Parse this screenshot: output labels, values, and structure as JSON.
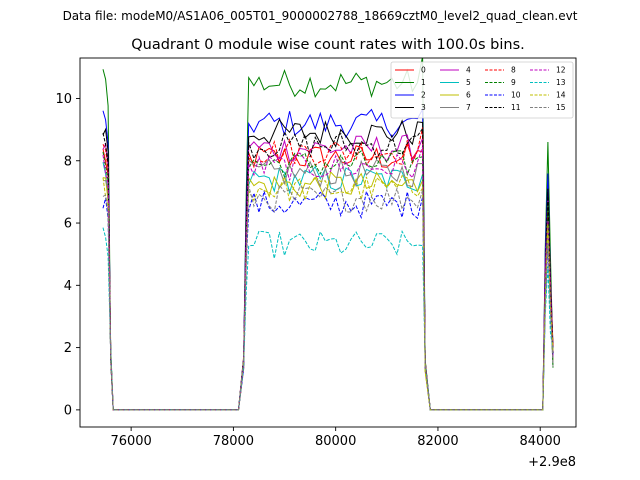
{
  "suptitle": "Data file: modeM0/AS1A06_005T01_9000002788_18669cztM0_level2_quad_clean.evt",
  "chart_data": {
    "type": "line",
    "title": "Quadrant 0 module wise count rates with 100.0s bins.",
    "xlabel": "",
    "ylabel": "",
    "x_offset_label": "+2.9e8",
    "xlim": [
      75000,
      84700
    ],
    "ylim": [
      -0.55,
      11.3
    ],
    "xticks": [
      76000,
      78000,
      80000,
      82000,
      84000
    ],
    "xtick_labels": [
      "76000",
      "78000",
      "80000",
      "82000",
      "84000"
    ],
    "yticks": [
      0,
      2,
      4,
      6,
      8,
      10
    ],
    "ytick_labels": [
      "0",
      "2",
      "4",
      "6",
      "8",
      "10"
    ],
    "grid": false,
    "legend_position": "top-right",
    "segments": [
      {
        "start": 75450,
        "high": [
          75450,
          75550
        ],
        "drop_end": 75650,
        "zero_to": 78100
      },
      {
        "start": 78100,
        "rise_end": 78300,
        "high": [
          78300,
          81650
        ],
        "drop_end": 81850,
        "zero_to": 84050
      },
      {
        "start": 84050,
        "peak": 84150,
        "end": 84250
      }
    ],
    "series": [
      {
        "name": "0",
        "color": "#ff0000",
        "dash": "solid",
        "mean": 8.1
      },
      {
        "name": "1",
        "color": "#008000",
        "dash": "solid",
        "mean": 10.5
      },
      {
        "name": "2",
        "color": "#0000ff",
        "dash": "solid",
        "mean": 9.2
      },
      {
        "name": "3",
        "color": "#000000",
        "dash": "solid",
        "mean": 8.9
      },
      {
        "name": "4",
        "color": "#bf00bf",
        "dash": "solid",
        "mean": 8.4
      },
      {
        "name": "5",
        "color": "#00bfbf",
        "dash": "solid",
        "mean": 7.4
      },
      {
        "name": "6",
        "color": "#bfbf00",
        "dash": "solid",
        "mean": 7.2
      },
      {
        "name": "7",
        "color": "#808080",
        "dash": "solid",
        "mean": 7.6
      },
      {
        "name": "8",
        "color": "#ff0000",
        "dash": "dashed",
        "mean": 8.3
      },
      {
        "name": "9",
        "color": "#008000",
        "dash": "dashed",
        "mean": 7.9
      },
      {
        "name": "10",
        "color": "#0000ff",
        "dash": "dashed",
        "mean": 6.6
      },
      {
        "name": "11",
        "color": "#000000",
        "dash": "dashed",
        "mean": 8.5
      },
      {
        "name": "12",
        "color": "#bf00bf",
        "dash": "dashed",
        "mean": 7.8
      },
      {
        "name": "13",
        "color": "#00bfbf",
        "dash": "dashed",
        "mean": 5.3
      },
      {
        "name": "14",
        "color": "#bfbf00",
        "dash": "dashed",
        "mean": 7.1
      },
      {
        "name": "15",
        "color": "#808080",
        "dash": "dashed",
        "mean": 6.8
      }
    ]
  }
}
